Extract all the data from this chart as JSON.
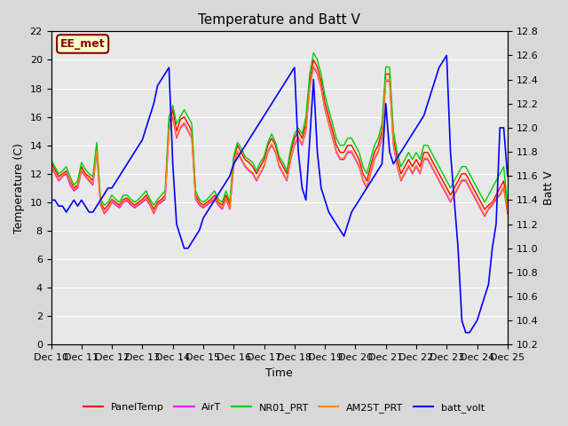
{
  "title": "Temperature and Batt V",
  "xlabel": "Time",
  "ylabel_left": "Temperature (C)",
  "ylabel_right": "Batt V",
  "annotation": "EE_met",
  "x_ticks": [
    "Dec 10",
    "Dec 11",
    "Dec 12",
    "Dec 13",
    "Dec 14",
    "Dec 15",
    "Dec 16",
    "Dec 17",
    "Dec 18",
    "Dec 19",
    "Dec 20",
    "Dec 21",
    "Dec 22",
    "Dec 23",
    "Dec 24",
    "Dec 25"
  ],
  "ylim_left": [
    0,
    22
  ],
  "ylim_right": [
    10.2,
    12.8
  ],
  "yticks_left": [
    0,
    2,
    4,
    6,
    8,
    10,
    12,
    14,
    16,
    18,
    20,
    22
  ],
  "yticks_right": [
    10.2,
    10.4,
    10.6,
    10.8,
    11.0,
    11.2,
    11.4,
    11.6,
    11.8,
    12.0,
    12.2,
    12.4,
    12.6,
    12.8
  ],
  "colors": {
    "PanelTemp": "#ff0000",
    "AirT": "#ff00ff",
    "NR01_PRT": "#00cc00",
    "AM25T_PRT": "#ff8800",
    "batt_volt": "#0000ff"
  },
  "legend_labels": [
    "PanelTemp",
    "AirT",
    "NR01_PRT",
    "AM25T_PRT",
    "batt_volt"
  ],
  "background_color": "#e8e8e8",
  "plot_bg_color": "#e8e8e8",
  "grid_color": "#ffffff",
  "PanelTemp": [
    12.8,
    12.3,
    11.8,
    12.0,
    12.2,
    11.5,
    11.0,
    11.2,
    12.5,
    12.0,
    11.8,
    11.5,
    14.0,
    10.0,
    9.5,
    9.8,
    10.2,
    10.0,
    9.8,
    10.2,
    10.3,
    10.0,
    9.8,
    10.0,
    10.2,
    10.5,
    10.0,
    9.5,
    10.0,
    10.2,
    10.5,
    15.5,
    16.5,
    15.0,
    15.8,
    16.0,
    15.5,
    15.0,
    10.5,
    10.0,
    9.8,
    10.0,
    10.2,
    10.5,
    10.0,
    9.8,
    10.5,
    9.8,
    13.0,
    14.0,
    13.5,
    13.0,
    12.8,
    12.5,
    12.0,
    12.5,
    13.0,
    14.0,
    14.5,
    14.0,
    13.0,
    12.5,
    12.0,
    13.5,
    14.5,
    15.0,
    14.5,
    15.5,
    18.5,
    20.0,
    19.5,
    18.5,
    17.0,
    16.0,
    15.0,
    14.0,
    13.5,
    13.5,
    14.0,
    14.0,
    13.5,
    13.0,
    12.0,
    11.5,
    12.5,
    13.5,
    14.0,
    15.0,
    19.0,
    19.0,
    14.5,
    13.0,
    12.0,
    12.5,
    13.0,
    12.5,
    13.0,
    12.5,
    13.5,
    13.5,
    13.0,
    12.5,
    12.0,
    11.5,
    11.0,
    10.5,
    11.0,
    11.5,
    12.0,
    12.0,
    11.5,
    11.0,
    10.5,
    10.0,
    9.5,
    9.8,
    10.0,
    10.5,
    11.0,
    11.5,
    9.5
  ],
  "AirT": [
    12.5,
    12.0,
    11.5,
    11.8,
    12.0,
    11.2,
    10.8,
    11.0,
    12.2,
    11.8,
    11.5,
    11.2,
    13.5,
    9.8,
    9.2,
    9.5,
    10.0,
    9.8,
    9.6,
    10.0,
    10.1,
    9.8,
    9.6,
    9.8,
    10.0,
    10.2,
    9.8,
    9.2,
    9.8,
    10.0,
    10.2,
    15.0,
    16.0,
    14.5,
    15.2,
    15.5,
    15.0,
    14.5,
    10.2,
    9.8,
    9.6,
    9.8,
    10.0,
    10.2,
    9.8,
    9.5,
    10.2,
    9.5,
    12.5,
    13.5,
    13.0,
    12.5,
    12.2,
    12.0,
    11.5,
    12.0,
    12.5,
    13.5,
    14.0,
    13.5,
    12.5,
    12.0,
    11.5,
    13.0,
    14.0,
    14.5,
    14.0,
    15.0,
    18.0,
    19.5,
    19.0,
    18.0,
    16.5,
    15.5,
    14.5,
    13.5,
    13.0,
    13.0,
    13.5,
    13.5,
    13.0,
    12.5,
    11.5,
    11.0,
    12.0,
    13.0,
    13.5,
    14.5,
    18.5,
    18.5,
    14.0,
    12.5,
    11.5,
    12.0,
    12.5,
    12.0,
    12.5,
    12.0,
    13.0,
    13.0,
    12.5,
    12.0,
    11.5,
    11.0,
    10.5,
    10.0,
    10.5,
    11.0,
    11.5,
    11.5,
    11.0,
    10.5,
    10.0,
    9.5,
    9.0,
    9.5,
    9.8,
    10.2,
    10.5,
    11.0,
    9.2
  ],
  "NR01_PRT": [
    13.0,
    12.5,
    12.0,
    12.2,
    12.5,
    11.8,
    11.2,
    11.5,
    12.8,
    12.3,
    12.0,
    11.8,
    14.2,
    10.2,
    9.8,
    10.0,
    10.5,
    10.2,
    10.0,
    10.5,
    10.5,
    10.2,
    10.0,
    10.2,
    10.5,
    10.8,
    10.2,
    9.8,
    10.2,
    10.5,
    10.8,
    16.0,
    16.8,
    15.5,
    16.0,
    16.5,
    16.0,
    15.5,
    10.8,
    10.2,
    10.0,
    10.2,
    10.5,
    10.8,
    10.2,
    10.0,
    10.8,
    10.0,
    13.2,
    14.2,
    13.8,
    13.2,
    13.0,
    12.8,
    12.2,
    12.8,
    13.2,
    14.2,
    14.8,
    14.2,
    13.2,
    12.8,
    12.2,
    13.8,
    14.8,
    15.2,
    14.8,
    16.0,
    19.0,
    20.5,
    20.0,
    19.0,
    17.5,
    16.5,
    15.5,
    14.5,
    14.0,
    14.0,
    14.5,
    14.5,
    14.0,
    13.5,
    12.5,
    12.0,
    13.0,
    14.0,
    14.5,
    15.5,
    19.5,
    19.5,
    15.0,
    13.5,
    12.5,
    13.0,
    13.5,
    13.0,
    13.5,
    13.0,
    14.0,
    14.0,
    13.5,
    13.0,
    12.5,
    12.0,
    11.5,
    11.0,
    11.5,
    12.0,
    12.5,
    12.5,
    12.0,
    11.5,
    11.0,
    10.5,
    10.0,
    10.5,
    11.0,
    11.5,
    12.0,
    12.5,
    9.8
  ],
  "AM25T_PRT": [
    12.6,
    12.1,
    11.6,
    11.9,
    12.1,
    11.4,
    10.9,
    11.1,
    12.3,
    11.9,
    11.6,
    11.3,
    13.6,
    9.9,
    9.3,
    9.6,
    10.1,
    9.9,
    9.7,
    10.1,
    10.2,
    9.9,
    9.7,
    9.9,
    10.1,
    10.3,
    9.9,
    9.3,
    9.9,
    10.1,
    10.3,
    15.1,
    16.1,
    14.6,
    15.3,
    15.6,
    15.1,
    14.6,
    10.3,
    9.9,
    9.7,
    9.9,
    10.1,
    10.3,
    9.9,
    9.6,
    10.3,
    9.6,
    12.6,
    13.6,
    13.1,
    12.6,
    12.3,
    12.1,
    11.6,
    12.1,
    12.6,
    13.6,
    14.1,
    13.6,
    12.6,
    12.1,
    11.6,
    13.1,
    14.1,
    14.6,
    14.1,
    15.1,
    18.1,
    19.6,
    19.1,
    18.1,
    16.6,
    15.6,
    14.6,
    13.6,
    13.1,
    13.1,
    13.6,
    13.6,
    13.1,
    12.6,
    11.6,
    11.1,
    12.1,
    13.1,
    13.6,
    14.6,
    18.6,
    18.6,
    14.1,
    12.6,
    11.6,
    12.1,
    12.6,
    12.1,
    12.6,
    12.1,
    13.1,
    13.1,
    12.6,
    12.1,
    11.6,
    11.1,
    10.6,
    10.1,
    10.6,
    11.1,
    11.6,
    11.6,
    11.1,
    10.6,
    10.1,
    9.6,
    9.1,
    9.6,
    9.9,
    10.3,
    10.6,
    11.1,
    9.3
  ],
  "batt_volt_raw": [
    11.4,
    11.4,
    11.35,
    11.35,
    11.3,
    11.35,
    11.4,
    11.35,
    11.4,
    11.35,
    11.3,
    11.3,
    11.35,
    11.4,
    11.45,
    11.5,
    11.5,
    11.55,
    11.6,
    11.65,
    11.7,
    11.75,
    11.8,
    11.85,
    11.9,
    12.0,
    12.1,
    12.2,
    12.35,
    12.4,
    12.45,
    12.5,
    11.7,
    11.2,
    11.1,
    11.0,
    11.0,
    11.05,
    11.1,
    11.15,
    11.25,
    11.3,
    11.35,
    11.4,
    11.45,
    11.5,
    11.55,
    11.6,
    11.7,
    11.75,
    11.8,
    11.85,
    11.9,
    11.95,
    12.0,
    12.05,
    12.1,
    12.15,
    12.2,
    12.25,
    12.3,
    12.35,
    12.4,
    12.45,
    12.5,
    11.8,
    11.5,
    11.4,
    11.9,
    12.4,
    11.8,
    11.5,
    11.4,
    11.3,
    11.25,
    11.2,
    11.15,
    11.1,
    11.2,
    11.3,
    11.35,
    11.4,
    11.45,
    11.5,
    11.55,
    11.6,
    11.65,
    11.7,
    12.2,
    11.8,
    11.7,
    11.75,
    11.8,
    11.85,
    11.9,
    11.95,
    12.0,
    12.05,
    12.1,
    12.2,
    12.3,
    12.4,
    12.5,
    12.55,
    12.6,
    11.8,
    11.4,
    11.0,
    10.4,
    10.3,
    10.3,
    10.35,
    10.4,
    10.5,
    10.6,
    10.7,
    11.0,
    11.2,
    12.0,
    12.0,
    11.6
  ]
}
